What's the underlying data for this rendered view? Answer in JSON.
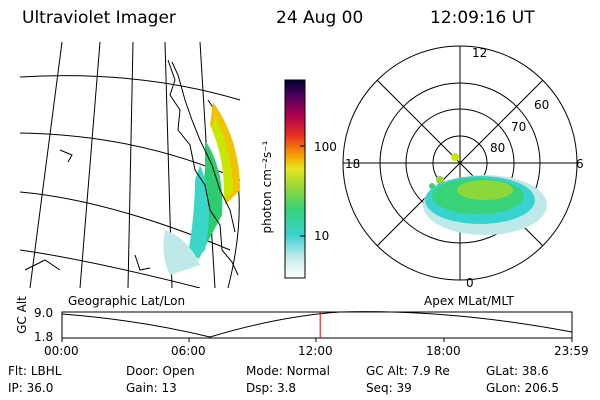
{
  "header": {
    "instrument": "Ultraviolet Imager",
    "date": "24 Aug 00",
    "time": "12:09:16 UT"
  },
  "geo_panel": {
    "label": "Geographic Lat/Lon"
  },
  "polar_panel": {
    "label": "Apex MLat/MLT",
    "mlt_top": "12",
    "mlt_left": "18",
    "mlt_right": "6",
    "mlt_bottom": "0",
    "lat_60": "60",
    "lat_70": "70",
    "lat_80": "80"
  },
  "colorbar": {
    "unit": "photon cm⁻²s⁻¹",
    "tick_100": "100",
    "tick_10": "10"
  },
  "timeline": {
    "axis_label": "GC Alt",
    "y_top": "9.0",
    "y_bottom": "1.8",
    "ticks": [
      "00:00",
      "06:00",
      "12:00",
      "18:00",
      "23:59"
    ],
    "current_time_hours": 12.15
  },
  "info": {
    "flt_label": "Flt:",
    "flt": "LBHL",
    "ip_label": "IP:",
    "ip": "36.0",
    "door_label": "Door:",
    "door": "Open",
    "gain_label": "Gain:",
    "gain": "13",
    "mode_label": "Mode:",
    "mode": "Normal",
    "dsp_label": "Dsp:",
    "dsp": "3.8",
    "gcalt_label": "GC Alt:",
    "gcalt": "7.9 Re",
    "seq_label": "Seq:",
    "seq": "39",
    "glat_label": "GLat:",
    "glat": "38.6",
    "glon_label": "GLon:",
    "glon": "206.5"
  }
}
